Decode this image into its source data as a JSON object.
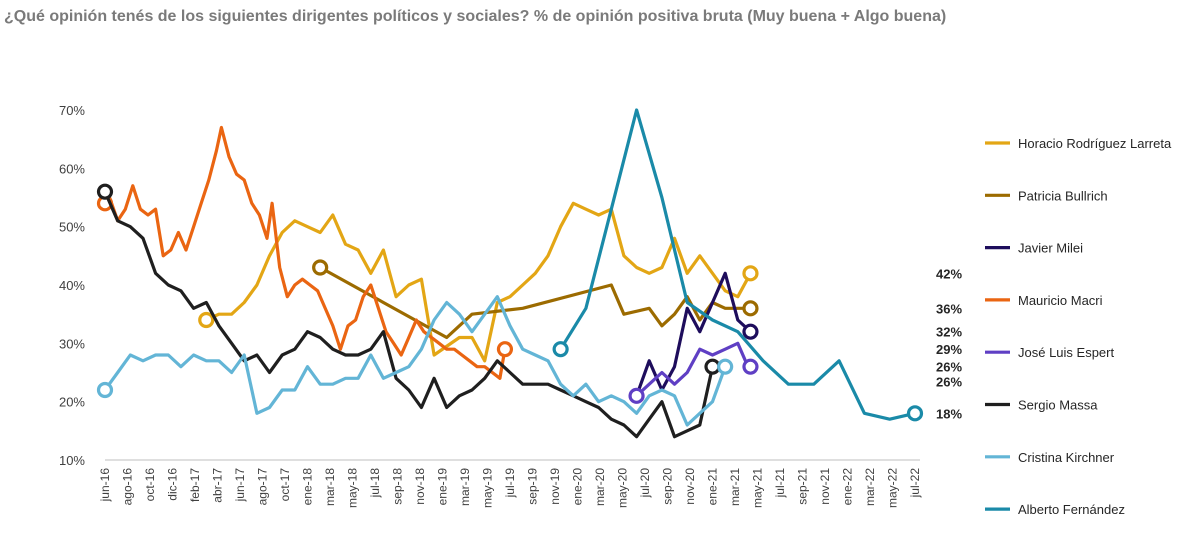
{
  "header": {
    "subtitle": "¿Qué opinión tenés de los siguientes dirigentes políticos y sociales? % de opinión positiva bruta (Muy buena + Algo buena)"
  },
  "chart_data": {
    "type": "line",
    "ylim": [
      10,
      70
    ],
    "yticks": [
      10,
      20,
      30,
      40,
      50,
      60,
      70
    ],
    "ytick_format": "%",
    "grid": false,
    "legend_position": "right",
    "x_labels": [
      "jun-16",
      "ago-16",
      "oct-16",
      "dic-16",
      "feb-17",
      "abr-17",
      "jun-17",
      "ago-17",
      "oct-17",
      "ene-18",
      "mar-18",
      "may-18",
      "jul-18",
      "sep-18",
      "nov-18",
      "ene-19",
      "mar-19",
      "may-19",
      "jul-19",
      "sep-19",
      "nov-19",
      "ene-20",
      "mar-20",
      "may-20",
      "jul-20",
      "sep-20",
      "nov-20",
      "ene-21",
      "mar-21",
      "may-21",
      "jul-21",
      "sep-21",
      "nov-21",
      "ene-22",
      "mar-22",
      "may-22",
      "jul-22"
    ],
    "series": [
      {
        "name": "Horacio Rodríguez Larreta",
        "color": "#e3a615",
        "start_marker": true,
        "end_label": "42%",
        "points": [
          [
            4.0,
            34
          ],
          [
            4.5,
            35
          ],
          [
            5.0,
            35
          ],
          [
            5.5,
            37
          ],
          [
            6.0,
            40
          ],
          [
            6.5,
            45
          ],
          [
            7.0,
            49
          ],
          [
            7.5,
            51
          ],
          [
            8.0,
            50
          ],
          [
            8.5,
            49
          ],
          [
            9.0,
            52
          ],
          [
            9.5,
            47
          ],
          [
            10.0,
            46
          ],
          [
            10.5,
            42
          ],
          [
            11.0,
            46
          ],
          [
            11.5,
            38
          ],
          [
            12.0,
            40
          ],
          [
            12.5,
            41
          ],
          [
            13.0,
            28
          ],
          [
            14.0,
            31
          ],
          [
            14.5,
            31
          ],
          [
            15.0,
            27
          ],
          [
            15.5,
            37
          ],
          [
            16.0,
            38
          ],
          [
            16.5,
            40
          ],
          [
            17.0,
            42
          ],
          [
            17.5,
            45
          ],
          [
            18.0,
            50
          ],
          [
            18.5,
            54
          ],
          [
            19.0,
            53
          ],
          [
            19.5,
            52
          ],
          [
            20.0,
            53
          ],
          [
            20.5,
            45
          ],
          [
            21.0,
            43
          ],
          [
            21.5,
            42
          ],
          [
            22.0,
            43
          ],
          [
            22.5,
            48
          ],
          [
            23.0,
            42
          ],
          [
            23.5,
            45
          ],
          [
            24.0,
            42
          ],
          [
            24.5,
            39
          ],
          [
            25.0,
            38
          ],
          [
            25.5,
            42
          ]
        ]
      },
      {
        "name": "Patricia Bullrich",
        "color": "#9c6b00",
        "start_marker": true,
        "end_label": "36%",
        "points": [
          [
            8.5,
            43
          ],
          [
            13.5,
            31
          ],
          [
            14.5,
            35
          ],
          [
            16.5,
            36
          ],
          [
            20.0,
            40
          ],
          [
            20.5,
            35
          ],
          [
            21.5,
            36
          ],
          [
            22.0,
            33
          ],
          [
            22.5,
            35
          ],
          [
            23.0,
            38
          ],
          [
            23.5,
            34
          ],
          [
            24.0,
            37
          ],
          [
            24.5,
            36
          ],
          [
            25.5,
            36
          ]
        ]
      },
      {
        "name": "Javier Milei",
        "color": "#1e0d5c",
        "start_marker": false,
        "end_label": "32%",
        "points": [
          [
            21.0,
            21
          ],
          [
            21.5,
            27
          ],
          [
            22.0,
            22
          ],
          [
            22.5,
            26
          ],
          [
            23.0,
            36
          ],
          [
            23.5,
            32
          ],
          [
            24.0,
            37
          ],
          [
            24.5,
            42
          ],
          [
            25.0,
            34
          ],
          [
            25.5,
            32
          ]
        ]
      },
      {
        "name": "Mauricio Macri",
        "color": "#ea6512",
        "start_marker": true,
        "end_label": "29%",
        "points": [
          [
            0.0,
            54
          ],
          [
            0.1,
            56
          ],
          [
            0.5,
            51
          ],
          [
            0.8,
            53
          ],
          [
            1.1,
            57
          ],
          [
            1.4,
            53
          ],
          [
            1.7,
            52
          ],
          [
            2.0,
            53
          ],
          [
            2.3,
            45
          ],
          [
            2.6,
            46
          ],
          [
            2.9,
            49
          ],
          [
            3.2,
            46
          ],
          [
            3.5,
            50
          ],
          [
            3.8,
            54
          ],
          [
            4.1,
            58
          ],
          [
            4.4,
            63
          ],
          [
            4.6,
            67
          ],
          [
            4.9,
            62
          ],
          [
            5.2,
            59
          ],
          [
            5.5,
            58
          ],
          [
            5.8,
            54
          ],
          [
            6.1,
            52
          ],
          [
            6.4,
            48
          ],
          [
            6.6,
            54
          ],
          [
            6.9,
            43
          ],
          [
            7.2,
            38
          ],
          [
            7.5,
            40
          ],
          [
            7.8,
            41
          ],
          [
            8.1,
            40
          ],
          [
            8.4,
            39
          ],
          [
            8.7,
            36
          ],
          [
            9.0,
            33
          ],
          [
            9.3,
            29
          ],
          [
            9.6,
            33
          ],
          [
            9.9,
            34
          ],
          [
            10.2,
            38
          ],
          [
            10.5,
            40
          ],
          [
            10.8,
            36
          ],
          [
            11.1,
            32
          ],
          [
            11.4,
            30
          ],
          [
            11.7,
            28
          ],
          [
            12.0,
            31
          ],
          [
            12.3,
            34
          ],
          [
            12.6,
            32
          ],
          [
            12.9,
            31
          ],
          [
            13.2,
            30
          ],
          [
            13.5,
            29
          ],
          [
            13.8,
            29
          ],
          [
            14.1,
            28
          ],
          [
            14.4,
            27
          ],
          [
            14.7,
            26
          ],
          [
            15.0,
            26
          ],
          [
            15.3,
            25
          ],
          [
            15.6,
            24
          ],
          [
            15.8,
            29
          ]
        ]
      },
      {
        "name": "José Luis Espert",
        "color": "#5f3fc4",
        "start_marker": true,
        "end_label": "26%",
        "points": [
          [
            21.0,
            21
          ],
          [
            21.5,
            23
          ],
          [
            22.0,
            25
          ],
          [
            22.5,
            23
          ],
          [
            23.0,
            25
          ],
          [
            23.5,
            29
          ],
          [
            24.0,
            28
          ],
          [
            24.5,
            29
          ],
          [
            25.0,
            30
          ],
          [
            25.5,
            25
          ],
          [
            25.5,
            26
          ]
        ]
      },
      {
        "name": "Sergio Massa",
        "color": "#1f1f1f",
        "start_marker": true,
        "end_label": "26%",
        "points": [
          [
            0.0,
            56
          ],
          [
            0.5,
            51
          ],
          [
            1.0,
            50
          ],
          [
            1.5,
            48
          ],
          [
            2.0,
            42
          ],
          [
            2.5,
            40
          ],
          [
            3.0,
            39
          ],
          [
            3.5,
            36
          ],
          [
            4.0,
            37
          ],
          [
            4.5,
            33
          ],
          [
            5.0,
            30
          ],
          [
            5.5,
            27
          ],
          [
            6.0,
            28
          ],
          [
            6.5,
            25
          ],
          [
            7.0,
            28
          ],
          [
            7.5,
            29
          ],
          [
            8.0,
            32
          ],
          [
            8.5,
            31
          ],
          [
            9.0,
            29
          ],
          [
            9.5,
            28
          ],
          [
            10.0,
            28
          ],
          [
            10.5,
            29
          ],
          [
            11.0,
            32
          ],
          [
            11.5,
            24
          ],
          [
            12.0,
            22
          ],
          [
            12.5,
            19
          ],
          [
            13.0,
            24
          ],
          [
            13.5,
            19
          ],
          [
            14.0,
            21
          ],
          [
            14.5,
            22
          ],
          [
            15.0,
            24
          ],
          [
            15.5,
            27
          ],
          [
            16.0,
            25
          ],
          [
            16.5,
            23
          ],
          [
            17.0,
            23
          ],
          [
            17.5,
            23
          ],
          [
            18.0,
            22
          ],
          [
            18.5,
            21
          ],
          [
            19.0,
            20
          ],
          [
            19.5,
            19
          ],
          [
            20.0,
            17
          ],
          [
            20.5,
            16
          ],
          [
            21.0,
            14
          ],
          [
            21.5,
            17
          ],
          [
            22.0,
            20
          ],
          [
            22.5,
            14
          ],
          [
            23.0,
            15
          ],
          [
            23.5,
            16
          ],
          [
            24.0,
            26
          ]
        ]
      },
      {
        "name": "Cristina Kirchner",
        "color": "#63b5d6",
        "start_marker": true,
        "end_label": "",
        "points": [
          [
            0.0,
            22
          ],
          [
            0.5,
            25
          ],
          [
            1.0,
            28
          ],
          [
            1.5,
            27
          ],
          [
            2.0,
            28
          ],
          [
            2.5,
            28
          ],
          [
            3.0,
            26
          ],
          [
            3.5,
            28
          ],
          [
            4.0,
            27
          ],
          [
            4.5,
            27
          ],
          [
            5.0,
            25
          ],
          [
            5.5,
            28
          ],
          [
            6.0,
            18
          ],
          [
            6.5,
            19
          ],
          [
            7.0,
            22
          ],
          [
            7.5,
            22
          ],
          [
            8.0,
            26
          ],
          [
            8.5,
            23
          ],
          [
            9.0,
            23
          ],
          [
            9.5,
            24
          ],
          [
            10.0,
            24
          ],
          [
            10.5,
            28
          ],
          [
            11.0,
            24
          ],
          [
            11.5,
            25
          ],
          [
            12.0,
            26
          ],
          [
            12.5,
            29
          ],
          [
            13.0,
            34
          ],
          [
            13.5,
            37
          ],
          [
            14.0,
            35
          ],
          [
            14.5,
            32
          ],
          [
            15.0,
            35
          ],
          [
            15.5,
            38
          ],
          [
            16.0,
            33
          ],
          [
            16.5,
            29
          ],
          [
            17.0,
            28
          ],
          [
            17.5,
            27
          ],
          [
            18.0,
            23
          ],
          [
            18.5,
            21
          ],
          [
            19.0,
            23
          ],
          [
            19.5,
            20
          ],
          [
            20.0,
            21
          ],
          [
            20.5,
            20
          ],
          [
            21.0,
            18
          ],
          [
            21.5,
            21
          ],
          [
            22.0,
            22
          ],
          [
            22.5,
            21
          ],
          [
            23.0,
            16
          ],
          [
            23.5,
            18
          ],
          [
            24.0,
            20
          ],
          [
            24.5,
            26
          ]
        ]
      },
      {
        "name": "Alberto Fernández",
        "color": "#1a8aa8",
        "start_marker": true,
        "end_label": "18%",
        "points": [
          [
            18.0,
            29
          ],
          [
            19.0,
            36
          ],
          [
            20.0,
            53
          ],
          [
            21.0,
            70
          ],
          [
            22.0,
            55
          ],
          [
            23.0,
            37
          ],
          [
            24.0,
            34
          ],
          [
            25.0,
            32
          ],
          [
            26.0,
            27
          ],
          [
            27.0,
            23
          ],
          [
            28.0,
            23
          ],
          [
            29.0,
            27
          ],
          [
            30.0,
            18
          ],
          [
            31.0,
            17
          ],
          [
            32.0,
            18
          ]
        ]
      }
    ]
  }
}
